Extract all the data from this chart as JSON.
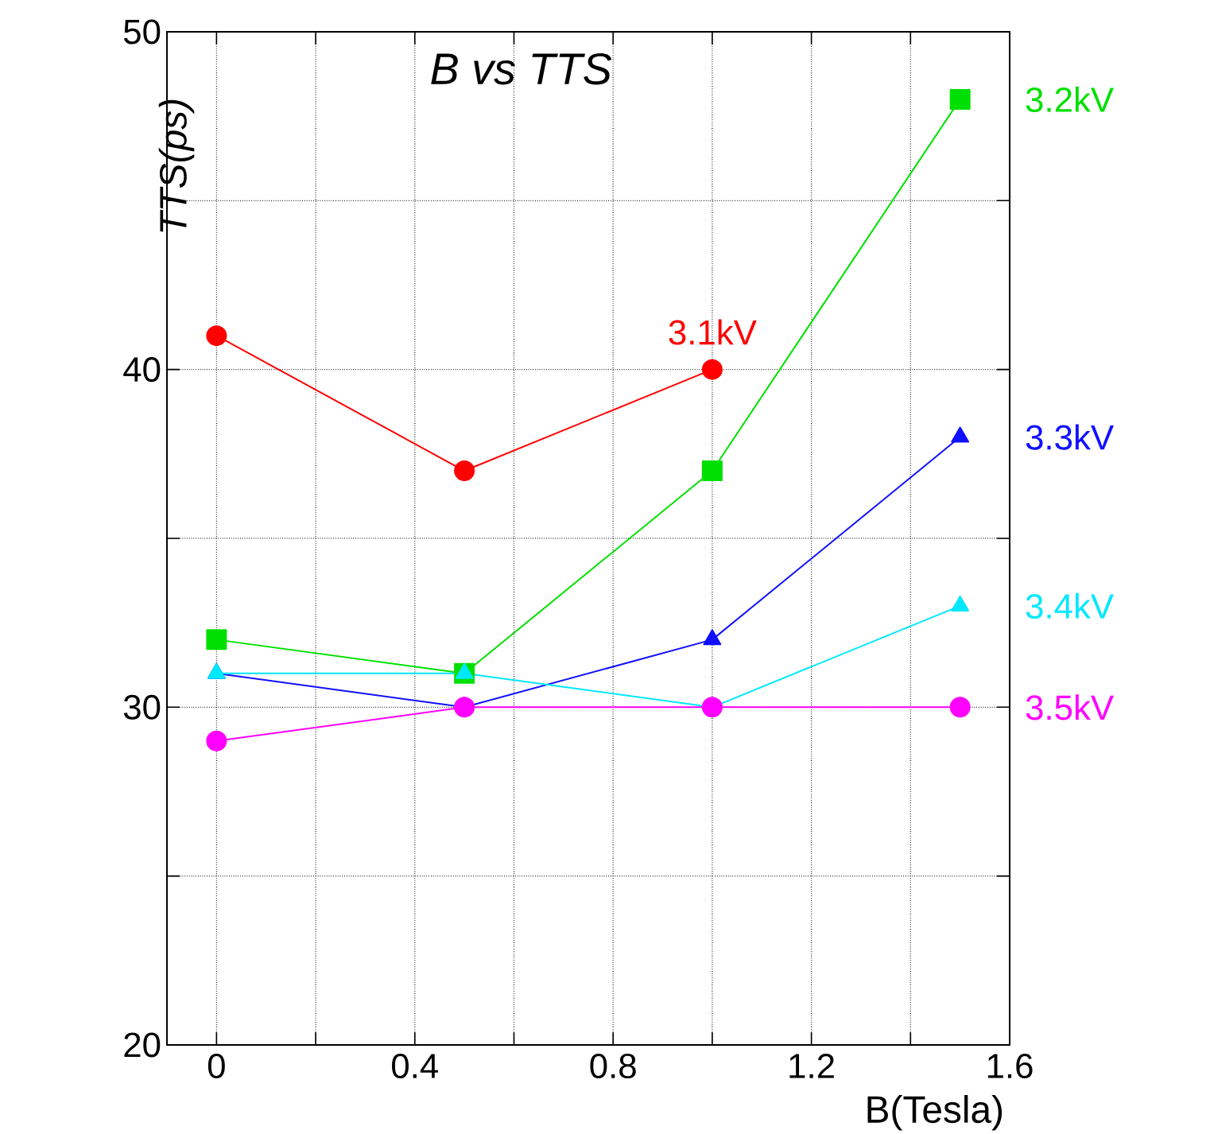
{
  "chart_data": {
    "type": "line",
    "title": "B vs TTS",
    "xlabel": "B(Tesla)",
    "ylabel": "TTS(ps)",
    "xlim": [
      -0.1,
      1.6
    ],
    "xticks": [
      0,
      {
        "value": 0.2,
        "label": null
      },
      0.4,
      {
        "value": 0.6,
        "label": null
      },
      0.8,
      {
        "value": 1.0,
        "label": null
      },
      1.2,
      {
        "value": 1.4,
        "label": null
      },
      1.6
    ],
    "ylim": [
      20,
      50
    ],
    "yticks": [
      20,
      {
        "value": 25,
        "label": null
      },
      30,
      {
        "value": 35,
        "label": null
      },
      40,
      {
        "value": 45,
        "label": null
      },
      50
    ],
    "grid": true,
    "legend": false,
    "line_style": "solid",
    "series": [
      {
        "name": "3.1kV",
        "color": "#ff0000",
        "marker": "circle",
        "x": [
          0,
          0.5,
          1
        ],
        "values": [
          41,
          37,
          40
        ]
      },
      {
        "name": "3.2kV",
        "color": "#00e000",
        "marker": "square",
        "x": [
          0,
          0.5,
          1,
          1.5
        ],
        "values": [
          32,
          31,
          37,
          48
        ]
      },
      {
        "name": "3.3kV",
        "color": "#1010ff",
        "marker": "triangle",
        "x": [
          0,
          0.5,
          1,
          1.5
        ],
        "values": [
          31,
          30,
          32,
          38
        ]
      },
      {
        "name": "3.4kV",
        "color": "#00e8ff",
        "marker": "triangle",
        "x": [
          0,
          0.5,
          1,
          1.5
        ],
        "values": [
          31,
          31,
          30,
          33
        ]
      },
      {
        "name": "3.5kV",
        "color": "#ff00ff",
        "marker": "circle",
        "x": [
          0,
          0.5,
          1,
          1.5
        ],
        "values": [
          29,
          30,
          30,
          30
        ]
      }
    ]
  }
}
